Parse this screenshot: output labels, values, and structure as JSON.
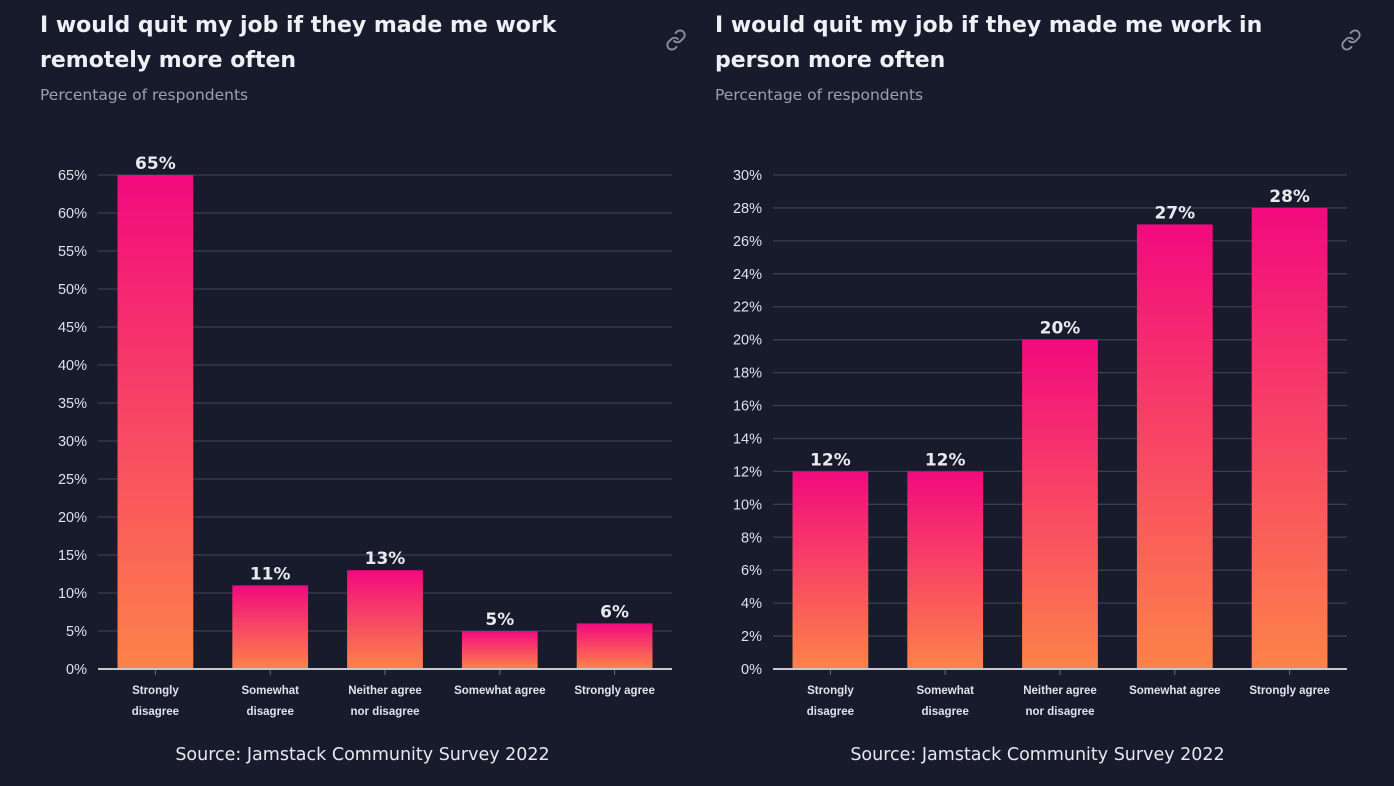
{
  "charts": [
    {
      "title": "I would quit my job if they made me work remotely more often",
      "subtitle": "Percentage of respondents",
      "source": "Source: Jamstack Community Survey 2022",
      "link_icon": "link-icon"
    },
    {
      "title": "I would quit my job if they made me work in person more often",
      "subtitle": "Percentage of respondents",
      "source": "Source: Jamstack Community Survey 2022",
      "link_icon": "link-icon"
    }
  ],
  "colors": {
    "background": "#181b2b",
    "bar_top": "#f20a7e",
    "bar_bottom": "#fd8349",
    "grid": "#3b3e50",
    "axis": "#c8c8cc"
  },
  "chart_data": [
    {
      "type": "bar",
      "title": "I would quit my job if they made me work remotely more often",
      "subtitle": "Percentage of respondents",
      "categories": [
        [
          "Strongly",
          "disagree"
        ],
        [
          "Somewhat",
          "disagree"
        ],
        [
          "Neither agree",
          "nor disagree"
        ],
        [
          "Somewhat agree"
        ],
        [
          "Strongly agree"
        ]
      ],
      "values": [
        65,
        11,
        13,
        5,
        6
      ],
      "value_labels": [
        "65%",
        "11%",
        "13%",
        "5%",
        "6%"
      ],
      "ylim": [
        0,
        65
      ],
      "yticks": [
        0,
        5,
        10,
        15,
        20,
        25,
        30,
        35,
        40,
        45,
        50,
        55,
        60,
        65
      ],
      "ytick_format": "%",
      "xlabel": "",
      "ylabel": "",
      "grid": true,
      "legend": "none",
      "source": "Source: Jamstack Community Survey 2022"
    },
    {
      "type": "bar",
      "title": "I would quit my job if they made me work in person more often",
      "subtitle": "Percentage of respondents",
      "categories": [
        [
          "Strongly",
          "disagree"
        ],
        [
          "Somewhat",
          "disagree"
        ],
        [
          "Neither agree",
          "nor disagree"
        ],
        [
          "Somewhat agree"
        ],
        [
          "Strongly agree"
        ]
      ],
      "values": [
        12,
        12,
        20,
        27,
        28
      ],
      "value_labels": [
        "12%",
        "12%",
        "20%",
        "27%",
        "28%"
      ],
      "ylim": [
        0,
        30
      ],
      "yticks": [
        0,
        2,
        4,
        6,
        8,
        10,
        12,
        14,
        16,
        18,
        20,
        22,
        24,
        26,
        28,
        30
      ],
      "ytick_format": "%",
      "xlabel": "",
      "ylabel": "",
      "grid": true,
      "legend": "none",
      "source": "Source: Jamstack Community Survey 2022"
    }
  ]
}
